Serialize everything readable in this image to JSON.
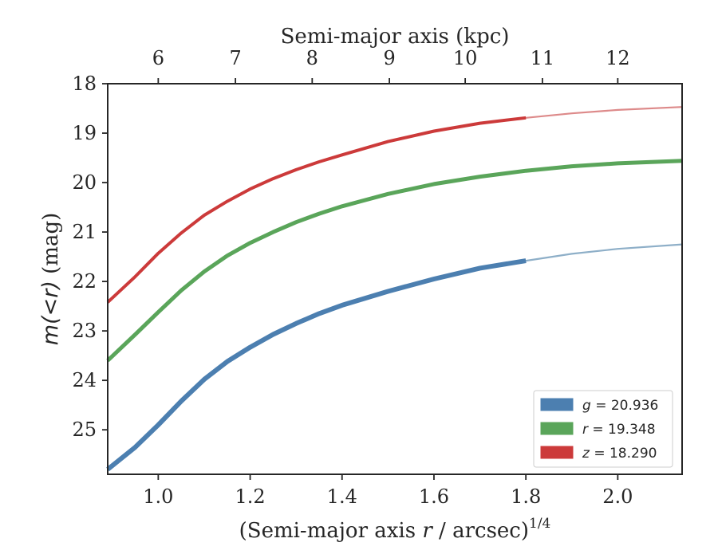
{
  "chart_data": {
    "type": "line",
    "xlabel_prefix": "(Semi-major axis ",
    "xlabel_var": "r",
    "xlabel_suffix": " / arcsec)",
    "xlabel_sup": "1/4",
    "x2label": "Semi-major axis (kpc)",
    "ylabel_italic": "m(<r)",
    "ylabel_rest": " (mag)",
    "xlim": [
      0.89,
      2.14
    ],
    "ylim": [
      25.9,
      18.0
    ],
    "y_inverted": true,
    "xticks": [
      1.0,
      1.2,
      1.4,
      1.6,
      1.8,
      2.0
    ],
    "xtick_labels": [
      "1.0",
      "1.2",
      "1.4",
      "1.6",
      "1.8",
      "2.0"
    ],
    "yticks": [
      18,
      19,
      20,
      21,
      22,
      23,
      24,
      25
    ],
    "ytick_labels": [
      "18",
      "19",
      "20",
      "21",
      "22",
      "23",
      "24",
      "25"
    ],
    "x2ticks_pos": [
      1.0,
      1.168,
      1.335,
      1.503,
      1.668,
      1.836,
      2.0
    ],
    "x2tick_labels": [
      "6",
      "7",
      "8",
      "9",
      "10",
      "11",
      "12"
    ],
    "grid": false,
    "legend_position": "bottom-right",
    "series": [
      {
        "name": "g = 20.936",
        "legend_var": "g",
        "legend_value": "= 20.936",
        "color": "#4c7fb0",
        "fit_color": "#8eafc8",
        "band_width": 6,
        "x": [
          0.89,
          0.95,
          1.0,
          1.05,
          1.1,
          1.15,
          1.2,
          1.25,
          1.3,
          1.35,
          1.4,
          1.5,
          1.6,
          1.7,
          1.8
        ],
        "y": [
          25.8,
          25.35,
          24.9,
          24.42,
          23.98,
          23.62,
          23.33,
          23.07,
          22.85,
          22.65,
          22.48,
          22.2,
          21.95,
          21.73,
          21.58
        ],
        "fit_x": [
          1.8,
          1.9,
          2.0,
          2.14
        ],
        "fit_y": [
          21.58,
          21.44,
          21.34,
          21.25
        ]
      },
      {
        "name": "r = 19.348",
        "legend_var": "r",
        "legend_value": "= 19.348",
        "color": "#5aa55a",
        "fit_color": "#5aa55a",
        "band_width": 5,
        "x": [
          0.89,
          0.95,
          1.0,
          1.05,
          1.1,
          1.15,
          1.2,
          1.25,
          1.3,
          1.35,
          1.4,
          1.5,
          1.6,
          1.7,
          1.8,
          1.9,
          2.0,
          2.14
        ],
        "y": [
          23.6,
          23.07,
          22.62,
          22.18,
          21.8,
          21.48,
          21.22,
          21.0,
          20.8,
          20.63,
          20.48,
          20.23,
          20.03,
          19.88,
          19.76,
          19.67,
          19.61,
          19.56
        ],
        "fit_x": [],
        "fit_y": []
      },
      {
        "name": "z = 18.290",
        "legend_var": "z",
        "legend_value": "= 18.290",
        "color": "#cc3a3a",
        "fit_color": "#dd8a8a",
        "band_width": 4,
        "x": [
          0.89,
          0.95,
          1.0,
          1.05,
          1.1,
          1.15,
          1.2,
          1.25,
          1.3,
          1.35,
          1.4,
          1.5,
          1.6,
          1.7,
          1.8
        ],
        "y": [
          22.42,
          21.9,
          21.43,
          21.02,
          20.66,
          20.38,
          20.13,
          19.92,
          19.74,
          19.58,
          19.44,
          19.17,
          18.96,
          18.8,
          18.69
        ],
        "fit_x": [
          1.8,
          1.9,
          2.0,
          2.14
        ],
        "fit_y": [
          18.69,
          18.6,
          18.53,
          18.47
        ]
      }
    ]
  }
}
